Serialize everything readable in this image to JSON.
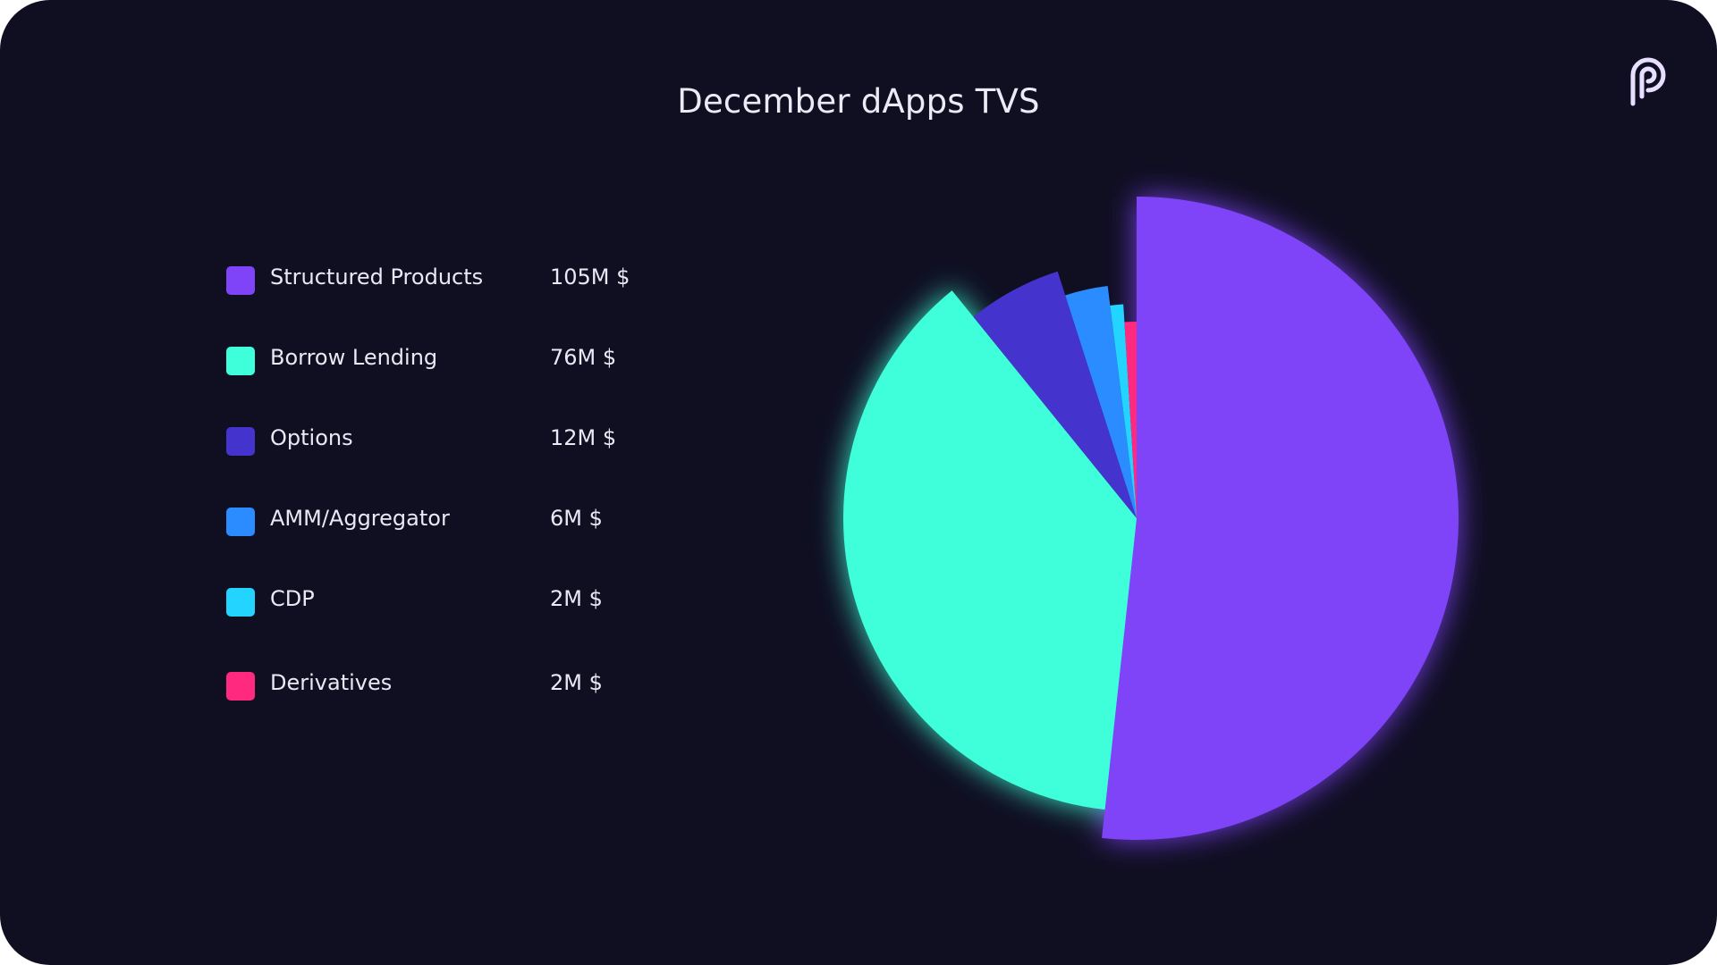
{
  "chart_data": {
    "type": "pie",
    "title": "December dApps TVS",
    "categories": [
      "Structured Products",
      "Borrow Lending",
      "Options",
      "AMM/Aggregator",
      "CDP",
      "Derivatives"
    ],
    "values": [
      105,
      76,
      12,
      6,
      2,
      2
    ],
    "value_labels": [
      "105M $",
      "76M $",
      "12M $",
      "6M $",
      "2M $",
      "2M $"
    ],
    "unit": "M $",
    "colors": [
      "#7f43f8",
      "#3effd9",
      "#4433cc",
      "#2b8cff",
      "#22d4ff",
      "#ff2a7f"
    ],
    "legend_position": "left"
  },
  "logo": {
    "icon": "brand-p-logo-icon",
    "color": "#e8deff"
  }
}
